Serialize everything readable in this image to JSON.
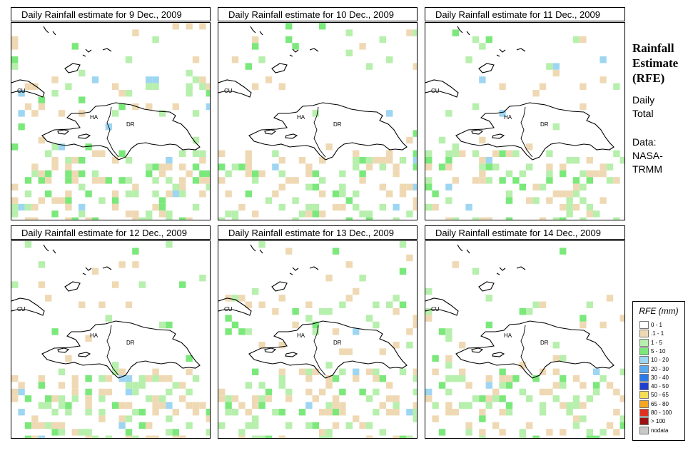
{
  "panels": [
    {
      "title": "Daily Rainfall estimate for  9 Dec., 2009"
    },
    {
      "title": "Daily Rainfall estimate for  10 Dec., 2009"
    },
    {
      "title": "Daily Rainfall estimate for  11 Dec., 2009"
    },
    {
      "title": "Daily Rainfall estimate for  12 Dec., 2009"
    },
    {
      "title": "Daily Rainfall estimate for  13 Dec., 2009"
    },
    {
      "title": "Daily Rainfall estimate for  14 Dec., 2009"
    }
  ],
  "map_labels": {
    "cuba": "CU",
    "haiti": "HA",
    "dominican_republic": "DR"
  },
  "sidebar": {
    "title_line1": "Rainfall",
    "title_line2": "Estimate",
    "title_line3": "(RFE)",
    "period_line1": "Daily",
    "period_line2": "Total",
    "source_line1": "Data:",
    "source_line2": "NASA-",
    "source_line3": "TRMM"
  },
  "legend": {
    "title": "RFE (mm)",
    "classes": [
      {
        "label": "0 - 1",
        "color": "#ffffff"
      },
      {
        "label": ".1 - 1",
        "color": "#efd9b4"
      },
      {
        "label": "1 - 5",
        "color": "#b7efad"
      },
      {
        "label": "5 - 10",
        "color": "#7be87b"
      },
      {
        "label": "10 - 20",
        "color": "#9ed6f2"
      },
      {
        "label": "20 - 30",
        "color": "#5aaaf0"
      },
      {
        "label": "30 - 40",
        "color": "#2c7ae6"
      },
      {
        "label": "40 - 50",
        "color": "#1f3fcf"
      },
      {
        "label": "50 - 65",
        "color": "#f5dc55"
      },
      {
        "label": "65 - 80",
        "color": "#f5a623"
      },
      {
        "label": "80 - 100",
        "color": "#e0301e"
      },
      {
        "label": "> 100",
        "color": "#9b1010"
      },
      {
        "label": "nodata",
        "color": "#c8c8c8"
      }
    ]
  }
}
